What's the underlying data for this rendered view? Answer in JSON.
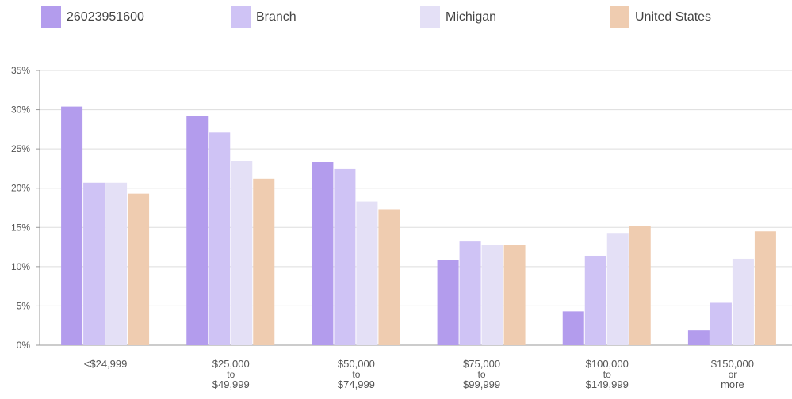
{
  "chart_data": {
    "type": "bar",
    "categories": [
      "<$24,999",
      "$25,000\nto\n$49,999",
      "$50,000\nto\n$74,999",
      "$75,000\nto\n$99,999",
      "$100,000\nto\n$149,999",
      "$150,000\nor\nmore"
    ],
    "series": [
      {
        "name": "26023951600",
        "color": "#b39ced",
        "values": [
          30.4,
          29.2,
          23.3,
          10.8,
          4.3,
          1.9
        ]
      },
      {
        "name": "Branch",
        "color": "#cfc3f5",
        "values": [
          20.7,
          27.1,
          22.5,
          13.2,
          11.4,
          5.4
        ]
      },
      {
        "name": "Michigan",
        "color": "#e4e0f6",
        "values": [
          20.7,
          23.4,
          18.3,
          12.8,
          14.3,
          11.0
        ]
      },
      {
        "name": "United States",
        "color": "#efccb0",
        "values": [
          19.3,
          21.2,
          17.3,
          12.8,
          15.2,
          14.5
        ]
      }
    ],
    "ylim": [
      0,
      35
    ],
    "yticks": [
      {
        "value": 0,
        "label": "0%"
      },
      {
        "value": 5,
        "label": "5%"
      },
      {
        "value": 10,
        "label": "10%"
      },
      {
        "value": 15,
        "label": "15%"
      },
      {
        "value": 20,
        "label": "20%"
      },
      {
        "value": 25,
        "label": "25%"
      },
      {
        "value": 30,
        "label": "30%"
      },
      {
        "value": 35,
        "label": "35%"
      }
    ],
    "grid": true,
    "legend": "top"
  }
}
